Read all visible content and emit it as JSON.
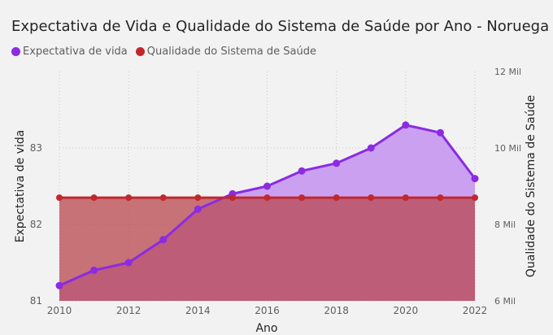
{
  "chart_data": {
    "type": "line",
    "title": "Expectativa de Vida e Qualidade do Sistema de Saúde por Ano - Noruega",
    "xlabel": "Ano",
    "ylabel": "Expectativa de vida",
    "y2label": "Qualidade do Sistema de Saúde",
    "x": [
      2010,
      2011,
      2012,
      2013,
      2014,
      2015,
      2016,
      2017,
      2018,
      2019,
      2020,
      2021,
      2022
    ],
    "x_ticks": [
      "2010",
      "2012",
      "2014",
      "2016",
      "2018",
      "2020",
      "2022"
    ],
    "y_ticks": [
      "81",
      "82",
      "83"
    ],
    "y2_ticks": [
      "6 Mil",
      "8 Mil",
      "10 Mil",
      "12 Mil"
    ],
    "ylim": [
      81,
      84
    ],
    "y2lim": [
      6000,
      12000
    ],
    "grid": true,
    "legend_position": "top-left",
    "series": [
      {
        "name": "Expectativa de vida",
        "axis": "left",
        "style": "area",
        "color": "#8b2be2",
        "fill": "#c89bf0",
        "values": [
          81.2,
          81.4,
          81.5,
          81.8,
          82.2,
          82.4,
          82.5,
          82.7,
          82.8,
          83.0,
          83.3,
          83.2,
          82.6
        ]
      },
      {
        "name": "Qualidade do Sistema de Saúde",
        "axis": "right",
        "style": "area",
        "color": "#c0282d",
        "fill": "#b8474d",
        "values": [
          8700,
          8700,
          8700,
          8700,
          8700,
          8700,
          8700,
          8700,
          8700,
          8700,
          8700,
          8700,
          8700
        ]
      }
    ]
  }
}
